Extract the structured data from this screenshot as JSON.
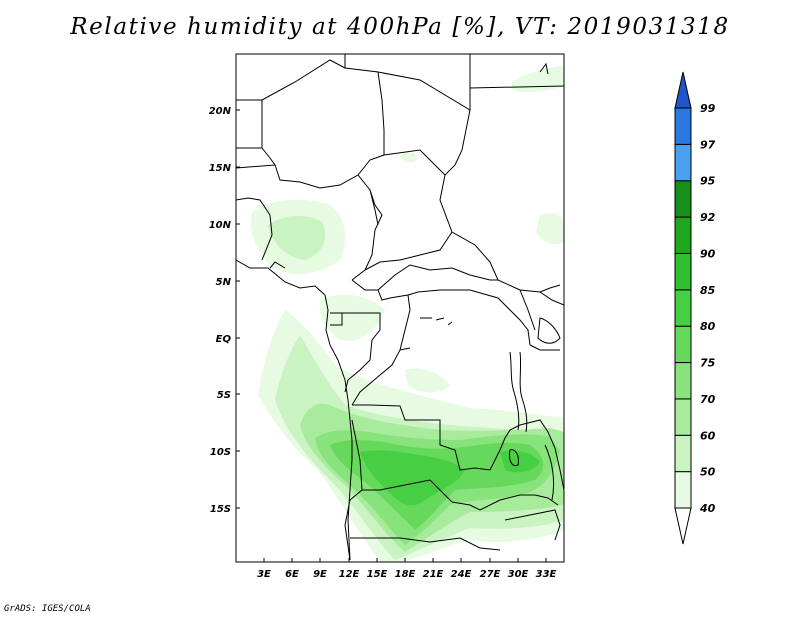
{
  "title": "Relative humidity at 400hPa [%], VT: 2019031318",
  "footer": "GrADS: IGES/COLA",
  "map": {
    "variable": "Relative humidity",
    "level": "400hPa",
    "units": "%",
    "valid_time": "2019031318",
    "lat_labels": [
      "20N",
      "15N",
      "10N",
      "5N",
      "EQ",
      "5S",
      "10S",
      "15S"
    ],
    "lon_labels": [
      "3E",
      "6E",
      "9E",
      "12E",
      "15E",
      "18E",
      "21E",
      "24E",
      "27E",
      "30E",
      "33E"
    ]
  },
  "colorbar": {
    "levels": [
      "40",
      "50",
      "60",
      "70",
      "75",
      "80",
      "85",
      "90",
      "92",
      "95",
      "97",
      "99"
    ],
    "colors": [
      "#ffffff",
      "#e6fbe2",
      "#c9f3c1",
      "#a8eb9d",
      "#88e37c",
      "#66d95c",
      "#46cf42",
      "#2fbe2f",
      "#1ea71e",
      "#16901a",
      "#4aa0f0",
      "#2a78e0",
      "#1f55c8"
    ]
  }
}
